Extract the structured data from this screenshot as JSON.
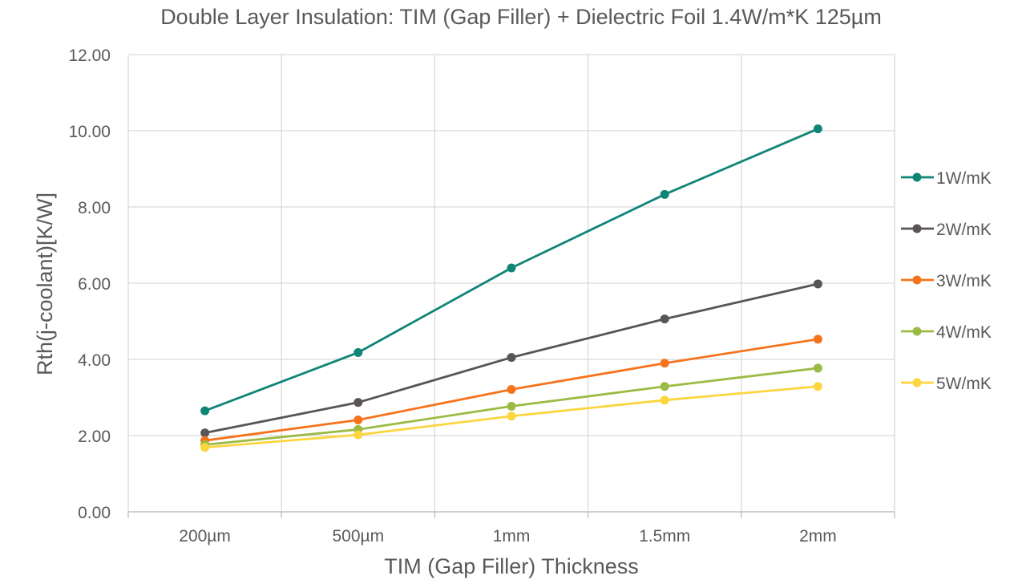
{
  "chart_data": {
    "type": "line",
    "title": "Double Layer Insulation: TIM (Gap Filler) + Dielectric Foil 1.4W/m*K 125µm",
    "xlabel": "TIM (Gap Filler) Thickness",
    "ylabel": "Rth(j-coolant)[K/W]",
    "categories": [
      "200µm",
      "500µm",
      "1mm",
      "1.5mm",
      "2mm"
    ],
    "ylim": [
      0,
      12
    ],
    "yticks": [
      "0.00",
      "2.00",
      "4.00",
      "6.00",
      "8.00",
      "10.00",
      "12.00"
    ],
    "grid": true,
    "legend_position": "right",
    "series": [
      {
        "name": "1W/mK",
        "color": "#0f8576",
        "values": [
          2.65,
          4.18,
          6.4,
          8.33,
          10.05
        ]
      },
      {
        "name": "2W/mK",
        "color": "#595557",
        "values": [
          2.07,
          2.87,
          4.05,
          5.06,
          5.98
        ]
      },
      {
        "name": "3W/mK",
        "color": "#f6731c",
        "values": [
          1.87,
          2.41,
          3.21,
          3.9,
          4.53
        ]
      },
      {
        "name": "4W/mK",
        "color": "#9cbb44",
        "values": [
          1.76,
          2.16,
          2.77,
          3.29,
          3.77
        ]
      },
      {
        "name": "5W/mK",
        "color": "#fcd53f",
        "values": [
          1.69,
          2.02,
          2.51,
          2.93,
          3.29
        ]
      }
    ]
  }
}
